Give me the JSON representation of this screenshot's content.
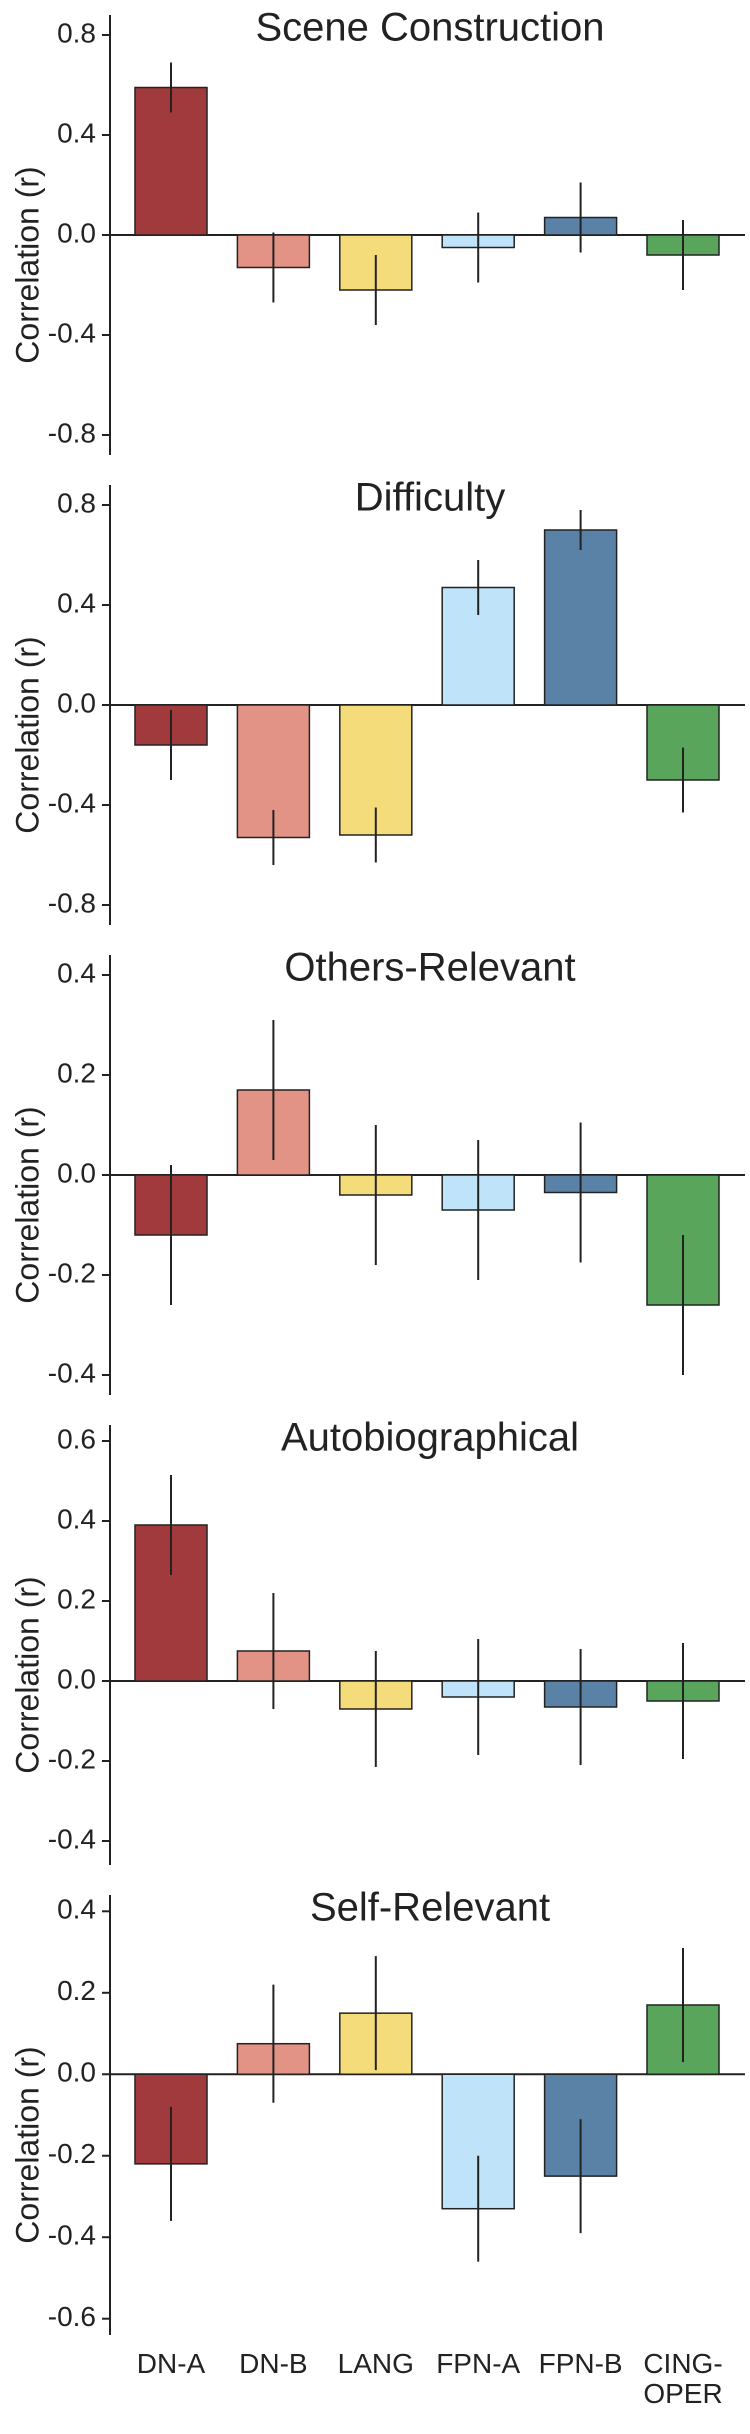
{
  "chart_data": [
    {
      "type": "bar",
      "title": "Scene Construction",
      "ylabel": "Correlation (r)",
      "categories": [
        null,
        null,
        null,
        null,
        null,
        null
      ],
      "values": [
        0.59,
        -0.13,
        -0.22,
        -0.05,
        0.07,
        -0.08
      ],
      "errors": [
        0.1,
        0.14,
        0.14,
        0.14,
        0.14,
        0.14
      ],
      "colors": [
        "#a03a3c",
        "#e39385",
        "#f5dc7a",
        "#bfe3f8",
        "#5a82a6",
        "#5aa55c"
      ],
      "ylim": [
        -0.88,
        0.88
      ],
      "yticks": [
        0.8,
        0.4,
        {
          "value": 0,
          "label": "0.0"
        },
        -0.4,
        -0.8
      ]
    },
    {
      "type": "bar",
      "title": "Difficulty",
      "ylabel": "Correlation (r)",
      "categories": [
        null,
        null,
        null,
        null,
        null,
        null
      ],
      "values": [
        -0.16,
        -0.53,
        -0.52,
        0.47,
        0.7,
        -0.3
      ],
      "errors": [
        0.14,
        0.11,
        0.11,
        0.11,
        0.08,
        0.13
      ],
      "colors": [
        "#a03a3c",
        "#e39385",
        "#f5dc7a",
        "#bfe3f8",
        "#5a82a6",
        "#5aa55c"
      ],
      "ylim": [
        -0.88,
        0.88
      ],
      "yticks": [
        0.8,
        0.4,
        {
          "value": 0,
          "label": "0.0"
        },
        -0.4,
        -0.8
      ]
    },
    {
      "type": "bar",
      "title": "Others-Relevant",
      "ylabel": "Correlation (r)",
      "categories": [
        null,
        null,
        null,
        null,
        null,
        null
      ],
      "values": [
        -0.12,
        0.17,
        -0.04,
        -0.07,
        -0.035,
        -0.26
      ],
      "errors": [
        0.14,
        0.14,
        0.14,
        0.14,
        0.14,
        0.14
      ],
      "colors": [
        "#a03a3c",
        "#e39385",
        "#f5dc7a",
        "#bfe3f8",
        "#5a82a6",
        "#5aa55c"
      ],
      "ylim": [
        -0.44,
        0.44
      ],
      "yticks": [
        0.4,
        0.2,
        {
          "value": 0,
          "label": "0.0"
        },
        -0.2,
        -0.4
      ]
    },
    {
      "type": "bar",
      "title": "Autobiographical",
      "ylabel": "Correlation (r)",
      "categories": [
        null,
        null,
        null,
        null,
        null,
        null
      ],
      "values": [
        0.39,
        0.075,
        -0.07,
        -0.04,
        -0.065,
        -0.05
      ],
      "errors": [
        0.125,
        0.145,
        0.145,
        0.145,
        0.145,
        0.145
      ],
      "colors": [
        "#a03a3c",
        "#e39385",
        "#f5dc7a",
        "#bfe3f8",
        "#5a82a6",
        "#5aa55c"
      ],
      "ylim": [
        -0.46,
        0.64
      ],
      "yticks": [
        0.6,
        0.4,
        0.2,
        {
          "value": 0,
          "label": "0.0"
        },
        -0.2,
        -0.4
      ]
    },
    {
      "type": "bar",
      "title": "Self-Relevant",
      "ylabel": "Correlation (r)",
      "categories": [
        "DN-A",
        "DN-B",
        "LANG",
        "FPN-A",
        "FPN-B",
        "CING-\nOPER"
      ],
      "values": [
        -0.22,
        0.075,
        0.15,
        -0.33,
        -0.25,
        0.17
      ],
      "errors": [
        0.14,
        0.145,
        0.14,
        0.13,
        0.14,
        0.14
      ],
      "colors": [
        "#a03a3c",
        "#e39385",
        "#f5dc7a",
        "#bfe3f8",
        "#5a82a6",
        "#5aa55c"
      ],
      "ylim": [
        -0.64,
        0.44
      ],
      "yticks": [
        0.4,
        0.2,
        {
          "value": 0,
          "label": "0.0"
        },
        -0.2,
        -0.4,
        -0.6
      ]
    }
  ]
}
